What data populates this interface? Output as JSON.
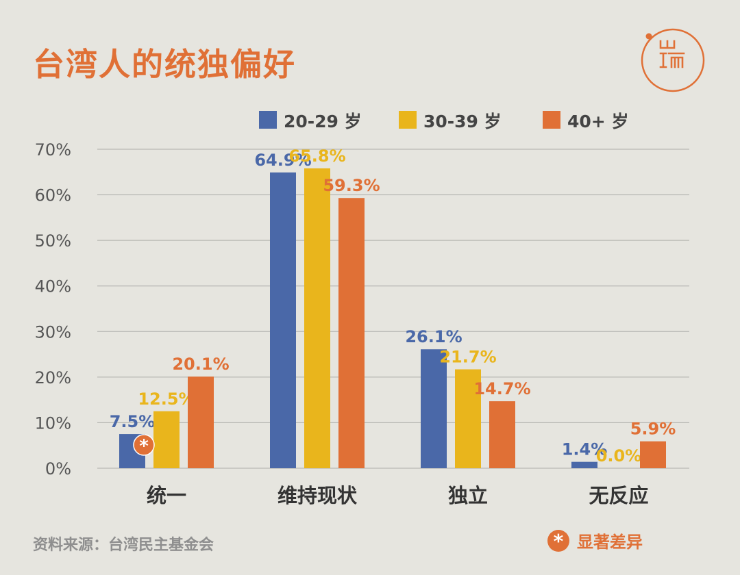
{
  "title": "台湾人的统独偏好",
  "source": "资料来源：台湾民主基金会",
  "significance_note": "显著差异",
  "logo_text": "端",
  "colors": {
    "accent": "#e07036",
    "background": "#e6e5df",
    "grid": "#b9b9b4",
    "axis_text": "#555555"
  },
  "chart_data": {
    "type": "bar",
    "title": "台湾人的统独偏好",
    "categories": [
      "统一",
      "维持现状",
      "独立",
      "无反应"
    ],
    "series": [
      {
        "name": "20-29 岁",
        "color": "#4a68a8",
        "values": [
          7.5,
          64.9,
          26.1,
          1.4
        ],
        "labels": [
          "7.5%",
          "64.9%",
          "26.1%",
          "1.4%"
        ]
      },
      {
        "name": "30-39 岁",
        "color": "#e9b51c",
        "values": [
          12.5,
          65.8,
          21.7,
          0.0
        ],
        "labels": [
          "12.5%",
          "65.8%",
          "21.7%",
          "0.0%"
        ]
      },
      {
        "name": "40+ 岁",
        "color": "#e07036",
        "values": [
          20.1,
          59.3,
          14.7,
          5.9
        ],
        "labels": [
          "20.1%",
          "59.3%",
          "14.7%",
          "5.9%"
        ]
      }
    ],
    "yticks": [
      "0%",
      "10%",
      "20%",
      "30%",
      "40%",
      "50%",
      "60%",
      "70%"
    ],
    "ylim": [
      0,
      70
    ],
    "grid": true,
    "legend_position": "top",
    "significant_markers": [
      {
        "category": "统一",
        "series": "20-29 岁"
      }
    ]
  }
}
